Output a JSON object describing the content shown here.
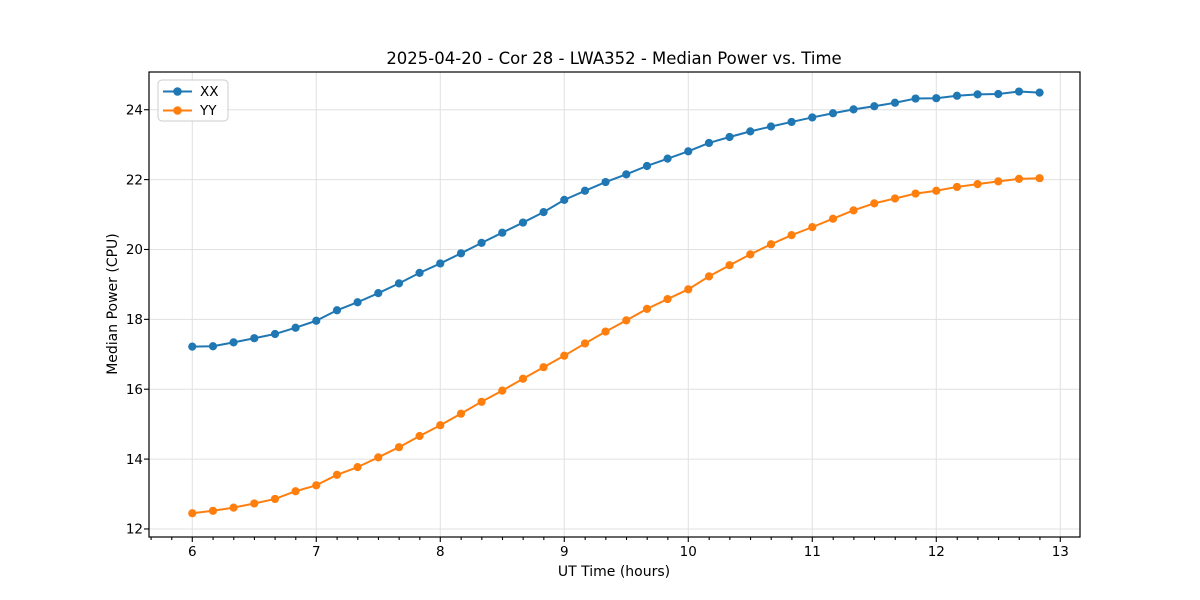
{
  "chart_data": {
    "type": "line",
    "title": "2025-04-20 - Cor 28 - LWA352 - Median Power vs. Time",
    "xlabel": "UT Time (hours)",
    "ylabel": "Median Power (CPU)",
    "x": [
      6.0,
      6.167,
      6.333,
      6.5,
      6.667,
      6.833,
      7.0,
      7.167,
      7.333,
      7.5,
      7.667,
      7.833,
      8.0,
      8.167,
      8.333,
      8.5,
      8.667,
      8.833,
      9.0,
      9.167,
      9.333,
      9.5,
      9.667,
      9.833,
      10.0,
      10.167,
      10.333,
      10.5,
      10.667,
      10.833,
      11.0,
      11.167,
      11.333,
      11.5,
      11.667,
      11.833,
      12.0,
      12.167,
      12.333,
      12.5,
      12.667,
      12.833
    ],
    "series": [
      {
        "name": "XX",
        "color": "#1f77b4",
        "values": [
          17.22,
          17.23,
          17.34,
          17.46,
          17.58,
          17.76,
          17.96,
          18.26,
          18.49,
          18.75,
          19.03,
          19.33,
          19.6,
          19.89,
          20.19,
          20.48,
          20.77,
          21.07,
          21.42,
          21.68,
          21.93,
          22.15,
          22.39,
          22.6,
          22.81,
          23.05,
          23.22,
          23.38,
          23.52,
          23.65,
          23.78,
          23.9,
          24.01,
          24.1,
          24.2,
          24.32,
          24.33,
          24.4,
          24.44,
          24.45,
          24.52,
          24.49
        ]
      },
      {
        "name": "YY",
        "color": "#ff7f0e",
        "values": [
          12.45,
          12.52,
          12.61,
          12.73,
          12.86,
          13.08,
          13.25,
          13.55,
          13.77,
          14.05,
          14.34,
          14.66,
          14.97,
          15.3,
          15.64,
          15.96,
          16.3,
          16.63,
          16.96,
          17.31,
          17.65,
          17.97,
          18.3,
          18.58,
          18.86,
          19.23,
          19.55,
          19.86,
          20.15,
          20.41,
          20.64,
          20.88,
          21.12,
          21.32,
          21.46,
          21.6,
          21.68,
          21.79,
          21.87,
          21.95,
          22.02,
          22.04
        ]
      }
    ],
    "xlim": [
      5.651,
      13.159
    ],
    "ylim": [
      11.77,
      25.08
    ],
    "xticks": [
      6,
      7,
      8,
      9,
      10,
      11,
      12,
      13
    ],
    "yticks": [
      12,
      14,
      16,
      18,
      20,
      22,
      24
    ],
    "x_minor_step": 0.1667,
    "grid": true,
    "grid_color": "#e0e0e0",
    "legend_position": "upper left",
    "marker": "o"
  }
}
